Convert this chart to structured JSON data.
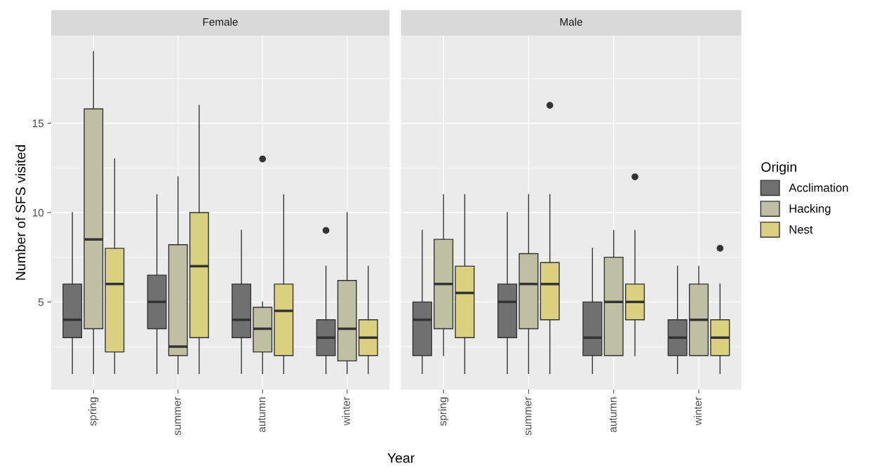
{
  "chart_data": [
    {
      "type": "box",
      "title": "Female",
      "xlabel": "Year",
      "ylabel": "Number of SFS visited",
      "categories": [
        "spring",
        "summer",
        "autumn",
        "winter"
      ],
      "ylim": [
        0.1,
        19.9
      ],
      "yticks": [
        5,
        10,
        15
      ],
      "grid": true,
      "legend": "right",
      "legend_title": "Origin",
      "series": [
        {
          "name": "Acclimation",
          "color": "#707070",
          "boxes": [
            {
              "low": 1,
              "q1": 3,
              "median": 4,
              "q3": 6,
              "high": 10
            },
            {
              "low": 1,
              "q1": 3.5,
              "median": 5,
              "q3": 6.5,
              "high": 11
            },
            {
              "low": 1,
              "q1": 3,
              "median": 4,
              "q3": 6,
              "high": 9
            },
            {
              "low": 1,
              "q1": 2,
              "median": 3,
              "q3": 4,
              "high": 7,
              "outliers": [
                9
              ]
            }
          ]
        },
        {
          "name": "Hacking",
          "color": "#bfbfa3",
          "boxes": [
            {
              "low": 1,
              "q1": 3.5,
              "median": 8.5,
              "q3": 15.8,
              "high": 19
            },
            {
              "low": 1,
              "q1": 2,
              "median": 2.5,
              "q3": 8.2,
              "high": 12
            },
            {
              "low": 1,
              "q1": 2.2,
              "median": 3.5,
              "q3": 4.7,
              "high": 5,
              "outliers": [
                13
              ]
            },
            {
              "low": 1,
              "q1": 1.7,
              "median": 3.5,
              "q3": 6.2,
              "high": 10
            }
          ]
        },
        {
          "name": "Nest",
          "color": "#dbcf80",
          "boxes": [
            {
              "low": 1,
              "q1": 2.2,
              "median": 6,
              "q3": 8,
              "high": 13
            },
            {
              "low": 1,
              "q1": 3,
              "median": 7,
              "q3": 10,
              "high": 16
            },
            {
              "low": 1,
              "q1": 2,
              "median": 4.5,
              "q3": 6,
              "high": 11
            },
            {
              "low": 1,
              "q1": 2,
              "median": 3,
              "q3": 4,
              "high": 7
            }
          ]
        }
      ]
    },
    {
      "type": "box",
      "title": "Male",
      "categories": [
        "spring",
        "summer",
        "autumn",
        "winter"
      ],
      "ylim": [
        0.1,
        19.9
      ],
      "yticks": [
        5,
        10,
        15
      ],
      "tick_labels": "x",
      "grid": true,
      "series": [
        {
          "color": "#707070",
          "boxes": [
            {
              "low": 1,
              "q1": 2,
              "median": 4,
              "q3": 5,
              "high": 9
            },
            {
              "low": 1,
              "q1": 3,
              "median": 5,
              "q3": 6,
              "high": 10
            },
            {
              "low": 1,
              "q1": 2,
              "median": 3,
              "q3": 5,
              "high": 8
            },
            {
              "low": 1,
              "q1": 2,
              "median": 3,
              "q3": 4,
              "high": 7
            }
          ]
        },
        {
          "color": "#bfbfa3",
          "boxes": [
            {
              "low": 2,
              "q1": 3.5,
              "median": 6,
              "q3": 8.5,
              "high": 11
            },
            {
              "low": 1,
              "q1": 3.5,
              "median": 6,
              "q3": 7.7,
              "high": 11
            },
            {
              "low": 2,
              "q1": 2,
              "median": 5,
              "q3": 7.5,
              "high": 9
            },
            {
              "low": 2,
              "q1": 2,
              "median": 4,
              "q3": 6,
              "high": 7
            }
          ]
        },
        {
          "color": "#dbcf80",
          "boxes": [
            {
              "low": 1,
              "q1": 3,
              "median": 5.5,
              "q3": 7,
              "high": 11
            },
            {
              "low": 1,
              "q1": 4,
              "median": 6,
              "q3": 7.2,
              "high": 11,
              "outliers": [
                16
              ]
            },
            {
              "low": 2,
              "q1": 4,
              "median": 5,
              "q3": 6,
              "high": 9,
              "outliers": [
                12
              ]
            },
            {
              "low": 1,
              "q1": 2,
              "median": 3,
              "q3": 4,
              "high": 6,
              "outliers": [
                8
              ]
            }
          ]
        }
      ]
    }
  ]
}
